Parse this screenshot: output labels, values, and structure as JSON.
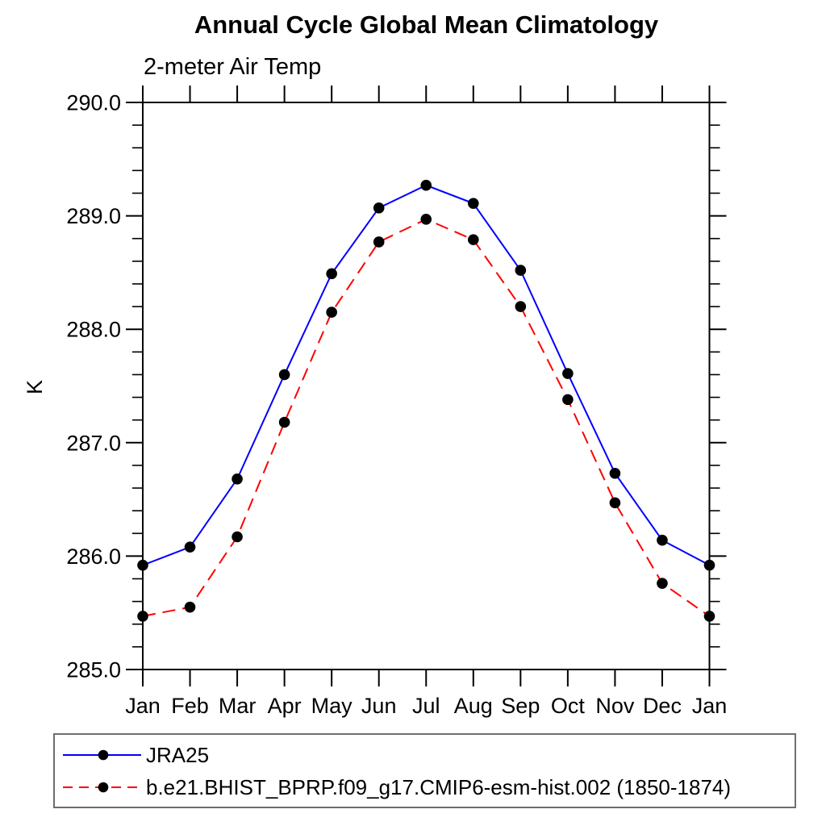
{
  "chart_data": {
    "type": "line",
    "title": "Annual Cycle Global Mean Climatology",
    "subtitle": "2-meter Air Temp",
    "ylabel": "K",
    "categories": [
      "Jan",
      "Feb",
      "Mar",
      "Apr",
      "May",
      "Jun",
      "Jul",
      "Aug",
      "Sep",
      "Oct",
      "Nov",
      "Dec",
      "Jan"
    ],
    "ylim": [
      285.0,
      290.0
    ],
    "ytick_major_interval": 1.0,
    "ytick_minor_interval": 0.2,
    "ytick_labels": [
      "285.0",
      "286.0",
      "287.0",
      "288.0",
      "289.0",
      "290.0"
    ],
    "grid": false,
    "legend_position": "bottom-left",
    "frame": "boxed-outward-ticks",
    "axis_color": "#000000",
    "background_color": "#ffffff",
    "series": [
      {
        "name": "JRA25",
        "color": "#0000ff",
        "line_style": "solid",
        "marker": "filled-circle",
        "marker_color": "#000000",
        "values": [
          285.92,
          286.08,
          286.68,
          287.6,
          288.49,
          289.07,
          289.27,
          289.11,
          288.52,
          287.61,
          286.73,
          286.14,
          285.92
        ]
      },
      {
        "name": "b.e21.BHIST_BPRP.f09_g17.CMIP6-esm-hist.002 (1850-1874)",
        "color": "#ff0000",
        "line_style": "dashed",
        "marker": "filled-circle",
        "marker_color": "#000000",
        "values": [
          285.47,
          285.55,
          286.17,
          287.18,
          288.15,
          288.77,
          288.97,
          288.79,
          288.2,
          287.38,
          286.47,
          285.76,
          285.47
        ]
      }
    ]
  }
}
